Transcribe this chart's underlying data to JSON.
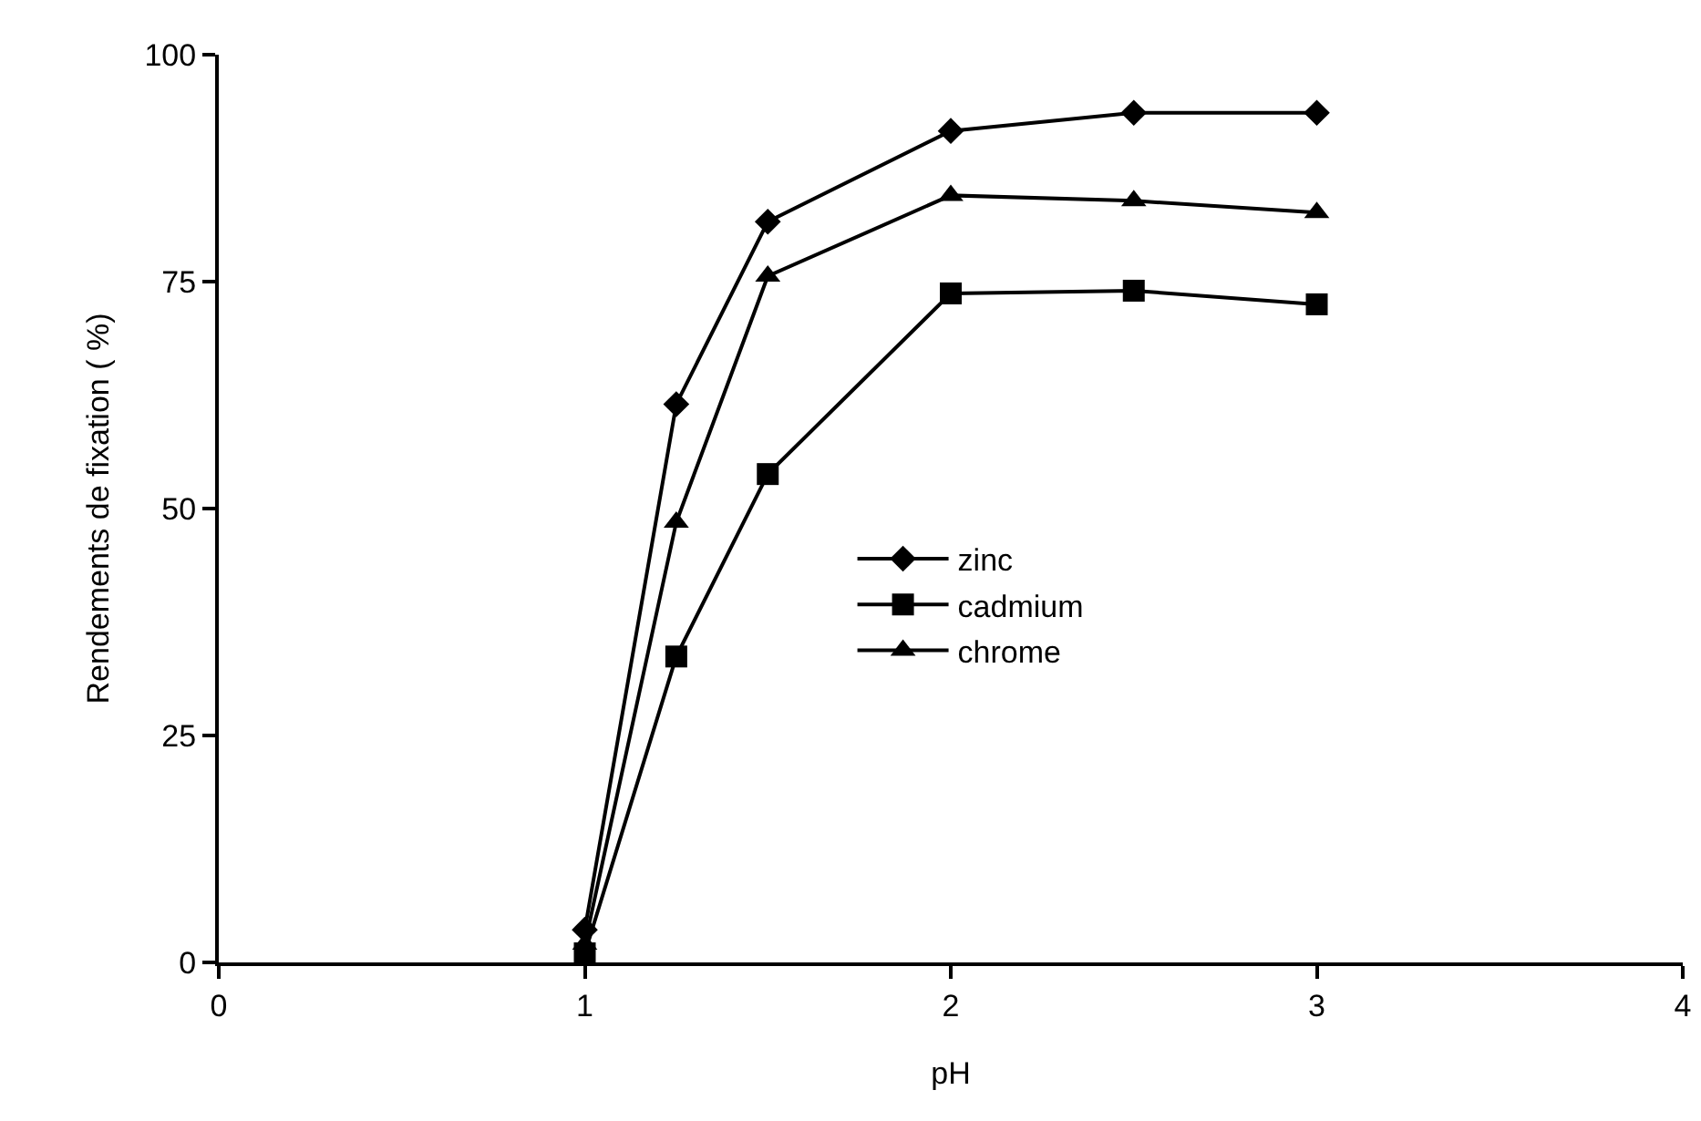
{
  "chart_data": {
    "type": "line",
    "xlabel": "pH",
    "ylabel": "Rendements de fixation ( %)",
    "x": [
      1,
      1.25,
      1.5,
      2,
      2.5,
      3
    ],
    "series": [
      {
        "name": "zinc",
        "color": "#000000",
        "marker": "diamond",
        "values": [
          3.6,
          61.5,
          81.6,
          91.6,
          93.6,
          93.6
        ]
      },
      {
        "name": "cadmium",
        "color": "#000000",
        "marker": "square",
        "values": [
          1.0,
          33.7,
          53.8,
          73.7,
          74.0,
          72.5
        ]
      },
      {
        "name": "chrome",
        "color": "#000000",
        "marker": "triangle",
        "values": [
          2.0,
          48.5,
          75.6,
          84.5,
          83.9,
          82.6
        ]
      }
    ],
    "xlim": [
      0,
      4
    ],
    "xticks": [
      0,
      1,
      2,
      3,
      4
    ],
    "ylim": [
      0,
      100
    ],
    "yticks": [
      0,
      25,
      50,
      75,
      100
    ],
    "legend": "center",
    "line_style": "solid"
  }
}
